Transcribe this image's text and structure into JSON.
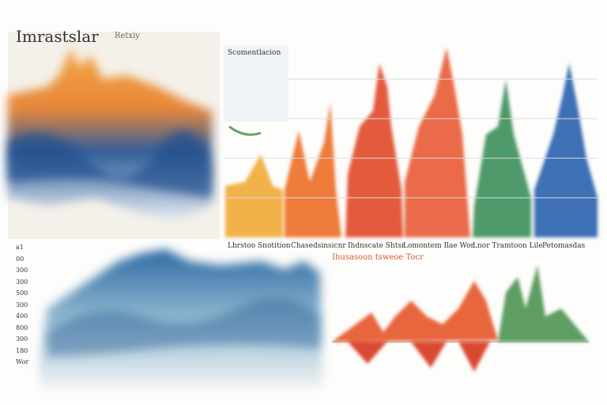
{
  "header": {
    "title": "Imrastslar",
    "tag": "Retxiy"
  },
  "legend": {
    "title": "Scomentlacion"
  },
  "top_right": {
    "labels": [
      "Lhrstoo Snotition",
      "Chasedsinsicnr",
      "Ihdnscate Shtsr",
      "Lomontem Ilae Wor",
      "Lnor Tramtoon Lile",
      "Petomasdas"
    ]
  },
  "bottom_right": {
    "subtitle": "Ihusasoon tsweoe Tocr"
  },
  "bottom_left": {
    "axis_labels": [
      "a1",
      "00",
      "300",
      "300",
      "500",
      "300",
      "400",
      "800",
      "300",
      "180",
      "Wor"
    ]
  }
}
